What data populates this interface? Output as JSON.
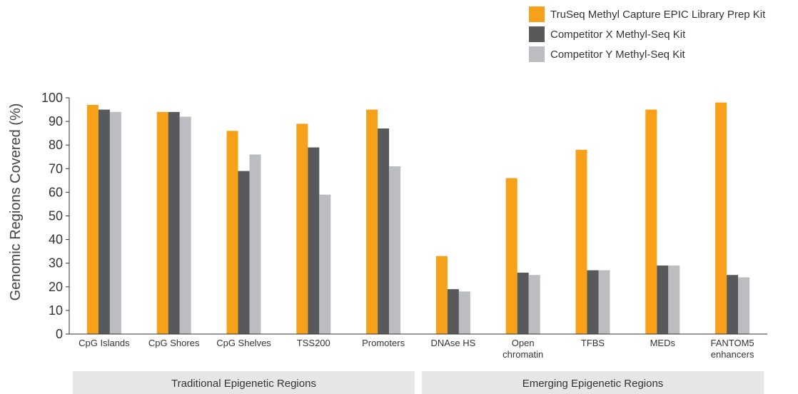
{
  "chart_data": {
    "type": "bar",
    "ylabel": "Genomic Regions Covered (%)",
    "xlabel": "",
    "ylim": [
      0,
      100
    ],
    "yticks": [
      0,
      10,
      20,
      30,
      40,
      50,
      60,
      70,
      80,
      90,
      100
    ],
    "grid": false,
    "legend_position": "top-right",
    "categories": [
      [
        "CpG Islands"
      ],
      [
        "CpG Shores"
      ],
      [
        "CpG Shelves"
      ],
      [
        "TSS200"
      ],
      [
        "Promoters"
      ],
      [
        "DNAse HS"
      ],
      [
        "Open",
        "chromatin"
      ],
      [
        "TFBS"
      ],
      [
        "MEDs"
      ],
      [
        "FANTOM5",
        "enhancers"
      ]
    ],
    "series": [
      {
        "name": "TruSeq Methyl Capture EPIC Library Prep Kit",
        "color": "#f7a11a",
        "values": [
          97,
          94,
          86,
          89,
          95,
          33,
          66,
          78,
          95,
          98
        ]
      },
      {
        "name": "Competitor X Methyl-Seq Kit",
        "color": "#58595b",
        "values": [
          95,
          94,
          69,
          79,
          87,
          19,
          26,
          27,
          29,
          25
        ]
      },
      {
        "name": "Competitor Y Methyl-Seq Kit",
        "color": "#bcbdc0",
        "values": [
          94,
          92,
          76,
          59,
          71,
          18,
          25,
          27,
          29,
          24
        ]
      }
    ],
    "groups": [
      {
        "label": "Traditional Epigenetic Regions",
        "categories": [
          0,
          4
        ]
      },
      {
        "label": "Emerging Epigenetic Regions",
        "categories": [
          5,
          9
        ]
      }
    ]
  }
}
